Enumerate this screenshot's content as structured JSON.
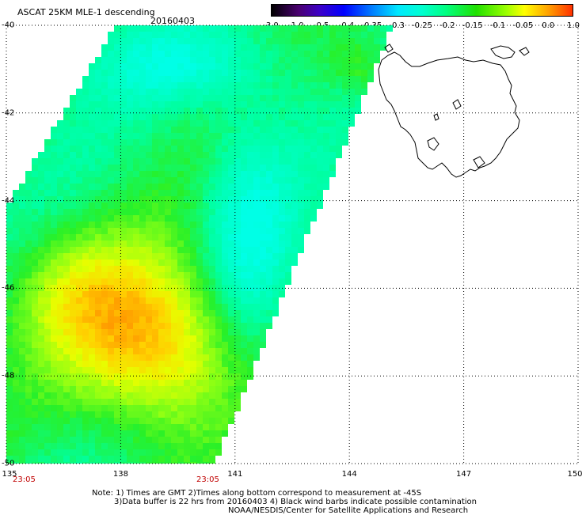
{
  "title": "ASCAT 25KM MLE-1 descending",
  "date": "20160403",
  "colorbar": {
    "ticks": [
      "-3.0",
      "-1.0",
      "-0.5",
      "-0.4",
      "-0.35",
      "-0.3",
      "-0.25",
      "-0.2",
      "-0.15",
      "-0.1",
      "-0.05",
      "0.0",
      "1.0"
    ]
  },
  "axes": {
    "lat_labels": [
      "-40",
      "-42",
      "-44",
      "-46",
      "-48",
      "-50"
    ],
    "lon_labels": [
      "135",
      "138",
      "141",
      "144",
      "147",
      "150"
    ],
    "lat_range": [
      -50,
      -40
    ],
    "lon_range": [
      135,
      150
    ],
    "grid": "dotted"
  },
  "times": [
    "23:05",
    "23:05"
  ],
  "notes": [
    "Note: 1) Times are GMT 2)Times along bottom correspond to measurement at -45S",
    "3)Data buffer is 22 hrs from 20160403 4) Black wind barbs indicate possible contamination",
    "NOAA/NESDIS/Center for Satellite Applications and Research"
  ],
  "colors": {
    "time_label": "#c00000",
    "background": "#ffffff",
    "coastline": "#000000"
  }
}
